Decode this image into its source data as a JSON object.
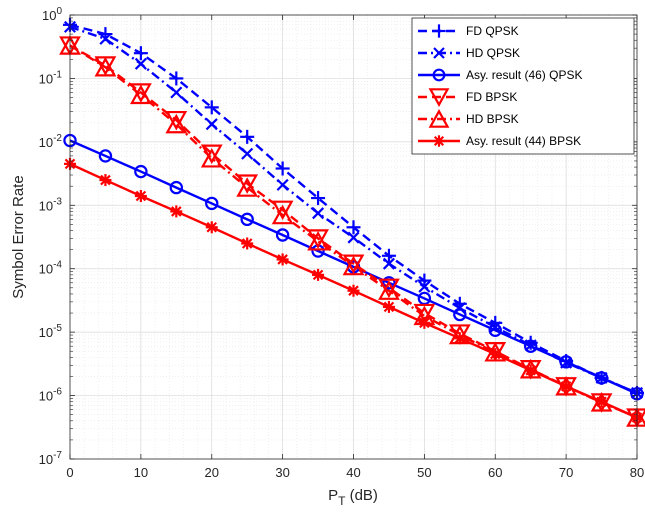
{
  "chart_data": {
    "type": "line",
    "xlabel_main": "P",
    "xlabel_sub": "T",
    "xlabel_unit": " (dB)",
    "ylabel": "Symbol Error Rate",
    "xlim": [
      0,
      80
    ],
    "ylim": [
      1e-07,
      1
    ],
    "yscale": "log",
    "grid": true,
    "minor_grid": true,
    "legend_position": "top-right",
    "x_ticks": [
      "0",
      "10",
      "20",
      "30",
      "40",
      "50",
      "60",
      "70",
      "80"
    ],
    "y_ticks": [
      {
        "base": "10",
        "exp": "0"
      },
      {
        "base": "10",
        "exp": "-1"
      },
      {
        "base": "10",
        "exp": "-2"
      },
      {
        "base": "10",
        "exp": "-3"
      },
      {
        "base": "10",
        "exp": "-4"
      },
      {
        "base": "10",
        "exp": "-5"
      },
      {
        "base": "10",
        "exp": "-6"
      },
      {
        "base": "10",
        "exp": "-7"
      }
    ],
    "x": [
      0,
      5,
      10,
      15,
      20,
      25,
      30,
      35,
      40,
      45,
      50,
      55,
      60,
      65,
      70,
      75,
      80
    ],
    "series": [
      {
        "name": "FD QPSK",
        "color": "#0000ff",
        "dash": "dashed",
        "marker": "plus",
        "values": [
          0.7,
          0.5,
          0.25,
          0.1,
          0.035,
          0.012,
          0.0038,
          0.0013,
          0.00045,
          0.00016,
          6.5e-05,
          2.8e-05,
          1.4e-05,
          6.8e-06,
          3.5e-06,
          1.9e-06,
          1.1e-06
        ]
      },
      {
        "name": "HD QPSK",
        "color": "#0000ff",
        "dash": "dashdot",
        "marker": "x",
        "values": [
          0.65,
          0.42,
          0.17,
          0.06,
          0.019,
          0.0065,
          0.0021,
          0.00075,
          0.00031,
          0.00012,
          5.2e-05,
          2.4e-05,
          1.2e-05,
          6.2e-06,
          3.3e-06,
          1.9e-06,
          1.1e-06
        ]
      },
      {
        "name": "Asy. result (46) QPSK",
        "color": "#0000ff",
        "dash": "solid",
        "marker": "circle",
        "values": [
          0.0105,
          0.006,
          0.0034,
          0.0019,
          0.00107,
          0.0006,
          0.00034,
          0.00019,
          0.000107,
          6e-05,
          3.4e-05,
          1.9e-05,
          1.07e-05,
          6e-06,
          3.4e-06,
          1.9e-06,
          1.07e-06
        ]
      },
      {
        "name": "FD BPSK",
        "color": "#ff0000",
        "dash": "dashed",
        "marker": "triangle-down",
        "values": [
          0.33,
          0.16,
          0.06,
          0.022,
          0.0065,
          0.0022,
          0.00085,
          0.0003,
          0.00012,
          5e-05,
          2e-05,
          9.5e-06,
          5e-06,
          2.6e-06,
          1.4e-06,
          7.8e-07,
          4.5e-07
        ]
      },
      {
        "name": "HD BPSK",
        "color": "#ff0000",
        "dash": "dashdot",
        "marker": "triangle-up",
        "values": [
          0.33,
          0.15,
          0.055,
          0.019,
          0.0055,
          0.0019,
          0.0007,
          0.00027,
          0.00011,
          4.5e-05,
          1.8e-05,
          9e-06,
          4.8e-06,
          2.6e-06,
          1.4e-06,
          7.8e-07,
          4.5e-07
        ]
      },
      {
        "name": "Asy. result (44) BPSK",
        "color": "#ff0000",
        "dash": "solid",
        "marker": "asterisk",
        "values": [
          0.0045,
          0.0025,
          0.0014,
          0.0008,
          0.00045,
          0.00025,
          0.00014,
          8e-05,
          4.5e-05,
          2.5e-05,
          1.4e-05,
          8e-06,
          4.5e-06,
          2.5e-06,
          1.4e-06,
          8e-07,
          4.5e-07
        ]
      }
    ]
  }
}
